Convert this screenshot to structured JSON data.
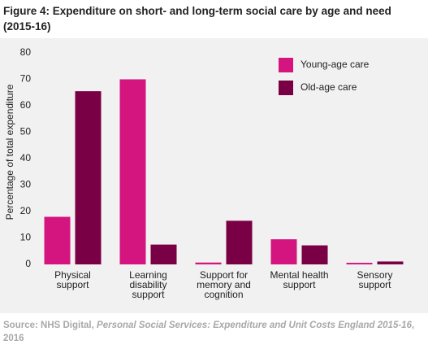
{
  "chart_data": {
    "type": "bar",
    "title": "Figure 4: Expenditure on short- and long-term social care by age and need (2015-16)",
    "y_label": "Percentage of total expenditure",
    "categories": [
      [
        "Physical",
        "support"
      ],
      [
        "Learning",
        "disability",
        "support"
      ],
      [
        "Support for",
        "memory and",
        "cognition"
      ],
      [
        "Mental health",
        "support"
      ],
      [
        "Sensory",
        "support"
      ]
    ],
    "series": [
      {
        "name": "Young-age care",
        "color": "#d4157f",
        "values": [
          18,
          70,
          0.7,
          9.5,
          0.6
        ]
      },
      {
        "name": "Old-age care",
        "color": "#7a0045",
        "values": [
          65.5,
          7.5,
          16.5,
          7.2,
          1.1
        ]
      }
    ],
    "ylim": [
      0,
      80
    ],
    "yticks": [
      0,
      10,
      20,
      30,
      40,
      50,
      60,
      70,
      80
    ],
    "grid": false,
    "legend": "top-right",
    "source": {
      "prefix": "Source: NHS Digital, ",
      "italic": "Personal Social Services: Expenditure and Unit Costs England 2015-16",
      "suffix": ", 2016"
    }
  }
}
